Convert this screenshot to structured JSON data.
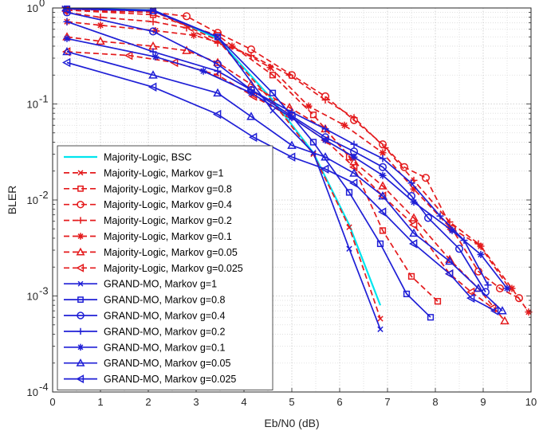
{
  "chart_data": {
    "type": "line",
    "title": "",
    "xlabel": "Eb/N0 (dB)",
    "ylabel": "BLER",
    "xlim": [
      0,
      10
    ],
    "ylim": [
      0.0001,
      1
    ],
    "yscale": "log",
    "grid": true,
    "minor_grid": true,
    "legend_position": "bottom-left",
    "x_ticks": [
      "0",
      "1",
      "2",
      "3",
      "4",
      "5",
      "6",
      "7",
      "8",
      "9",
      "10"
    ],
    "y_ticks": [
      {
        "value": 0.0001,
        "label": "10",
        "exp": "-4"
      },
      {
        "value": 0.001,
        "label": "10",
        "exp": "-3"
      },
      {
        "value": 0.01,
        "label": "10",
        "exp": "-2"
      },
      {
        "value": 0.1,
        "label": "10",
        "exp": "-1"
      },
      {
        "value": 1,
        "label": "10",
        "exp": "0"
      }
    ],
    "series": [
      {
        "name": "Majority-Logic, BSC",
        "color": "#00e5ee",
        "dash": "solid",
        "marker": "none",
        "x": [
          0.25,
          2.1,
          3.45,
          4.6,
          5.45,
          6.2,
          6.85
        ],
        "y": [
          0.99,
          0.95,
          0.48,
          0.11,
          0.031,
          0.0055,
          0.0008
        ]
      },
      {
        "name": "Majority-Logic, Markov g=1",
        "color": "#e41a1c",
        "dash": "dashed",
        "marker": "x",
        "x": [
          0.25,
          2.1,
          3.45,
          4.6,
          5.45,
          6.2,
          6.85
        ],
        "y": [
          0.97,
          0.93,
          0.46,
          0.105,
          0.03,
          0.0052,
          0.00058
        ]
      },
      {
        "name": "Majority-Logic, Markov g=0.8",
        "color": "#e41a1c",
        "dash": "dashed",
        "marker": "square",
        "x": [
          0.3,
          2.1,
          3.45,
          4.6,
          5.45,
          6.2,
          6.9,
          7.5,
          8.05
        ],
        "y": [
          0.95,
          0.85,
          0.52,
          0.2,
          0.077,
          0.028,
          0.0048,
          0.0016,
          0.00088
        ]
      },
      {
        "name": "Majority-Logic, Markov g=0.4",
        "color": "#e41a1c",
        "dash": "dashed",
        "marker": "circle",
        "x": [
          0.3,
          2.1,
          2.8,
          3.45,
          4.15,
          5.0,
          5.7,
          6.3,
          6.9,
          7.35,
          7.8,
          8.35,
          8.9,
          9.35,
          9.75
        ],
        "y": [
          0.95,
          0.9,
          0.82,
          0.55,
          0.37,
          0.2,
          0.12,
          0.068,
          0.038,
          0.022,
          0.017,
          0.005,
          0.0018,
          0.0012,
          0.00095
        ]
      },
      {
        "name": "Majority-Logic, Markov g=0.2",
        "color": "#e41a1c",
        "dash": "dashed",
        "marker": "plus",
        "x": [
          0.3,
          1.0,
          2.1,
          2.8,
          3.45,
          4.15,
          4.95,
          5.7,
          6.3,
          6.95,
          7.55,
          8.3,
          8.9,
          9.55
        ],
        "y": [
          0.9,
          0.8,
          0.72,
          0.62,
          0.43,
          0.32,
          0.2,
          0.11,
          0.072,
          0.035,
          0.016,
          0.0059,
          0.0035,
          0.0012
        ]
      },
      {
        "name": "Majority-Logic, Markov g=0.1",
        "color": "#e41a1c",
        "dash": "dashed",
        "marker": "star",
        "x": [
          0.3,
          1.0,
          2.15,
          2.95,
          3.75,
          4.55,
          5.35,
          6.1,
          6.9,
          7.55,
          8.3,
          8.95,
          9.6,
          9.95
        ],
        "y": [
          0.72,
          0.66,
          0.58,
          0.52,
          0.4,
          0.24,
          0.095,
          0.06,
          0.031,
          0.013,
          0.0052,
          0.0033,
          0.0012,
          0.00068
        ]
      },
      {
        "name": "Majority-Logic, Markov g=0.05",
        "color": "#e41a1c",
        "dash": "dashed",
        "marker": "triangle",
        "x": [
          0.3,
          1.0,
          2.1,
          2.8,
          3.45,
          4.15,
          4.95,
          5.7,
          6.3,
          6.9,
          7.55,
          8.3,
          8.9,
          9.45
        ],
        "y": [
          0.5,
          0.45,
          0.4,
          0.36,
          0.27,
          0.16,
          0.092,
          0.055,
          0.025,
          0.014,
          0.0065,
          0.0024,
          0.0012,
          0.00055
        ]
      },
      {
        "name": "Majority-Logic, Markov g=0.025",
        "color": "#e41a1c",
        "dash": "dashed",
        "marker": "triangle-left",
        "x": [
          0.3,
          1.6,
          2.55,
          3.45,
          4.2,
          4.95,
          5.7,
          6.3,
          6.9,
          7.55,
          8.3,
          8.75,
          9.2
        ],
        "y": [
          0.35,
          0.32,
          0.27,
          0.2,
          0.12,
          0.075,
          0.042,
          0.022,
          0.011,
          0.0055,
          0.0017,
          0.0011,
          0.00075
        ]
      },
      {
        "name": "GRAND-MO, Markov g=1",
        "color": "#1f1fd6",
        "dash": "solid",
        "marker": "x",
        "x": [
          0.25,
          2.1,
          3.45,
          4.6,
          5.45,
          6.2,
          6.85
        ],
        "y": [
          0.99,
          0.95,
          0.5,
          0.085,
          0.031,
          0.0031,
          0.00045
        ]
      },
      {
        "name": "GRAND-MO, Markov g=0.8",
        "color": "#1f1fd6",
        "dash": "solid",
        "marker": "square",
        "x": [
          0.3,
          2.1,
          3.45,
          4.6,
          5.45,
          6.2,
          6.85,
          7.4,
          7.9
        ],
        "y": [
          0.98,
          0.93,
          0.5,
          0.13,
          0.04,
          0.012,
          0.0035,
          0.00105,
          0.0006
        ]
      },
      {
        "name": "GRAND-MO, Markov g=0.4",
        "color": "#1f1fd6",
        "dash": "solid",
        "marker": "circle",
        "x": [
          0.3,
          2.1,
          3.45,
          4.15,
          5.0,
          5.7,
          6.3,
          6.9,
          7.5,
          7.85,
          8.5,
          9.05
        ],
        "y": [
          0.9,
          0.57,
          0.26,
          0.14,
          0.075,
          0.045,
          0.032,
          0.022,
          0.011,
          0.0065,
          0.0031,
          0.0011
        ]
      },
      {
        "name": "GRAND-MO, Markov g=0.2",
        "color": "#1f1fd6",
        "dash": "solid",
        "marker": "plus",
        "x": [
          0.3,
          2.1,
          3.45,
          4.15,
          5.0,
          5.7,
          6.3,
          6.9,
          7.5,
          8.1,
          8.6,
          9.1
        ],
        "y": [
          0.72,
          0.35,
          0.22,
          0.14,
          0.082,
          0.055,
          0.038,
          0.027,
          0.015,
          0.0068,
          0.0038,
          0.0013
        ]
      },
      {
        "name": "GRAND-MO, Markov g=0.1",
        "color": "#1f1fd6",
        "dash": "solid",
        "marker": "star",
        "x": [
          0.3,
          2.15,
          3.15,
          4.15,
          5.0,
          5.7,
          6.3,
          6.9,
          7.55,
          8.35,
          8.95,
          9.5
        ],
        "y": [
          0.48,
          0.31,
          0.22,
          0.13,
          0.072,
          0.042,
          0.028,
          0.018,
          0.0095,
          0.0048,
          0.0027,
          0.0012
        ]
      },
      {
        "name": "GRAND-MO, Markov g=0.05",
        "color": "#1f1fd6",
        "dash": "solid",
        "marker": "triangle",
        "x": [
          0.3,
          2.1,
          3.45,
          4.15,
          5.0,
          5.7,
          6.3,
          6.9,
          7.55,
          8.3,
          8.9,
          9.4
        ],
        "y": [
          0.35,
          0.2,
          0.13,
          0.074,
          0.037,
          0.028,
          0.019,
          0.011,
          0.0045,
          0.0023,
          0.0012,
          0.0007
        ]
      },
      {
        "name": "GRAND-MO, Markov g=0.025",
        "color": "#1f1fd6",
        "dash": "solid",
        "marker": "triangle-left",
        "x": [
          0.3,
          2.1,
          3.45,
          4.2,
          5.0,
          5.7,
          6.3,
          6.9,
          7.55,
          8.3,
          8.75,
          9.25
        ],
        "y": [
          0.27,
          0.15,
          0.078,
          0.045,
          0.028,
          0.021,
          0.015,
          0.0075,
          0.0035,
          0.0017,
          0.00095,
          0.0007
        ]
      }
    ]
  }
}
